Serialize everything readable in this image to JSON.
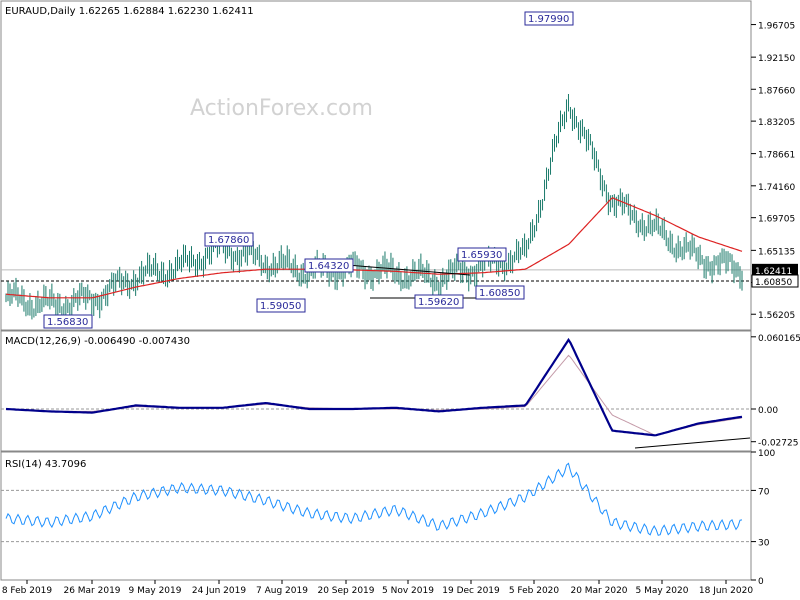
{
  "main": {
    "symbol_line": "EURAUD,Daily  1.62265 1.62884 1.62230 1.62411",
    "watermark": "ActionForex.com",
    "y_ticks": [
      "1.96705",
      "1.92150",
      "1.87660",
      "1.83205",
      "1.78661",
      "1.74160",
      "1.69705",
      "1.65135",
      "1.60650",
      "1.56205"
    ],
    "current_price": "1.62411",
    "support_level": "1.60850",
    "annotations": [
      {
        "text": "1.97990",
        "x": "19 Mar 2020",
        "price": 1.9799
      },
      {
        "text": "1.67860",
        "x": "Jul 2019",
        "price": 1.6786
      },
      {
        "text": "1.64320",
        "x": "Sep 2019",
        "price": 1.6432
      },
      {
        "text": "1.65930",
        "x": "Jan 2020",
        "price": 1.6593
      },
      {
        "text": "1.59050",
        "x": "Aug 2019",
        "price": 1.5905
      },
      {
        "text": "1.59620",
        "x": "Dec 2019",
        "price": 1.5962
      },
      {
        "text": "1.60850",
        "x": "Jan 2020",
        "price": 1.6085
      },
      {
        "text": "1.56830",
        "x": "Mar 2019",
        "price": 1.5683
      }
    ]
  },
  "macd": {
    "label": "MACD(12,26,9) -0.006490 -0.007430",
    "y_ticks": [
      "0.060165",
      "0.00",
      "-0.02725"
    ]
  },
  "rsi": {
    "label": "RSI(14) 43.7096",
    "y_ticks": [
      "100",
      "70",
      "30",
      "0"
    ]
  },
  "x_ticks": [
    "8 Feb 2019",
    "26 Mar 2019",
    "9 May 2019",
    "24 Jun 2019",
    "7 Aug 2019",
    "20 Sep 2019",
    "5 Nov 2019",
    "19 Dec 2019",
    "5 Feb 2020",
    "20 Mar 2020",
    "5 May 2020",
    "18 Jun 2020"
  ],
  "colors": {
    "price_bars": "#1a7a6a",
    "ma": "#dd2222",
    "macd": "#00008b",
    "signal": "#c49aa8",
    "rsi": "#1e90ff",
    "grid": "#9a9a9a"
  },
  "chart_data": [
    {
      "type": "line",
      "title": "EURAUD,Daily",
      "x": [
        "Feb 2019",
        "Mar 2019",
        "Apr 2019",
        "May 2019",
        "Jun 2019",
        "Jul 2019",
        "Aug 2019",
        "Sep 2019",
        "Oct 2019",
        "Nov 2019",
        "Dec 2019",
        "Jan 2020",
        "Feb 2020",
        "Mar 2020",
        "Apr 2020",
        "May 2020",
        "Jun 2020",
        "Jul 2020"
      ],
      "series": [
        {
          "values": [
            1.585,
            1.575,
            1.583,
            1.615,
            1.628,
            1.655,
            1.635,
            1.622,
            1.626,
            1.62,
            1.612,
            1.63,
            1.645,
            1.86,
            1.72,
            1.68,
            1.64,
            1.624
          ]
        },
        {
          "values": [
            1.59,
            1.585,
            1.585,
            1.6,
            1.612,
            1.62,
            1.625,
            1.625,
            1.624,
            1.622,
            1.618,
            1.62,
            1.625,
            1.66,
            1.725,
            1.7,
            1.67,
            1.65
          ]
        }
      ],
      "ylim": [
        1.54,
        2.0
      ]
    },
    {
      "type": "line",
      "title": "MACD(12,26,9)",
      "x": [
        "Feb 2019",
        "Mar 2019",
        "Apr 2019",
        "May 2019",
        "Jun 2019",
        "Jul 2019",
        "Aug 2019",
        "Sep 2019",
        "Oct 2019",
        "Nov 2019",
        "Dec 2019",
        "Jan 2020",
        "Feb 2020",
        "Mar 2020",
        "Apr 2020",
        "May 2020",
        "Jun 2020",
        "Jul 2020"
      ],
      "series": [
        {
          "values": [
            0.0,
            -0.002,
            -0.003,
            0.003,
            0.001,
            0.001,
            0.005,
            0.0,
            0.0,
            0.001,
            -0.002,
            0.001,
            0.003,
            0.058,
            -0.018,
            -0.022,
            -0.012,
            -0.0065
          ]
        },
        {
          "values": [
            0.0,
            -0.002,
            -0.002,
            0.002,
            0.001,
            0.001,
            0.004,
            0.001,
            0.0,
            0.0,
            -0.001,
            0.0,
            0.002,
            0.045,
            -0.005,
            -0.022,
            -0.013,
            -0.0074
          ]
        }
      ],
      "ylim": [
        -0.035,
        0.065
      ]
    },
    {
      "type": "line",
      "title": "RSI(14)",
      "x": [
        "Feb 2019",
        "Mar 2019",
        "Apr 2019",
        "May 2019",
        "Jun 2019",
        "Jul 2019",
        "Aug 2019",
        "Sep 2019",
        "Oct 2019",
        "Nov 2019",
        "Dec 2019",
        "Jan 2020",
        "Feb 2020",
        "Mar 2020",
        "Apr 2020",
        "May 2020",
        "Jun 2020",
        "Jul 2020"
      ],
      "series": [
        {
          "values": [
            48,
            45,
            50,
            65,
            72,
            70,
            62,
            52,
            48,
            55,
            42,
            52,
            65,
            88,
            45,
            38,
            42,
            43.7
          ]
        }
      ],
      "ylim": [
        0,
        100
      ]
    }
  ]
}
